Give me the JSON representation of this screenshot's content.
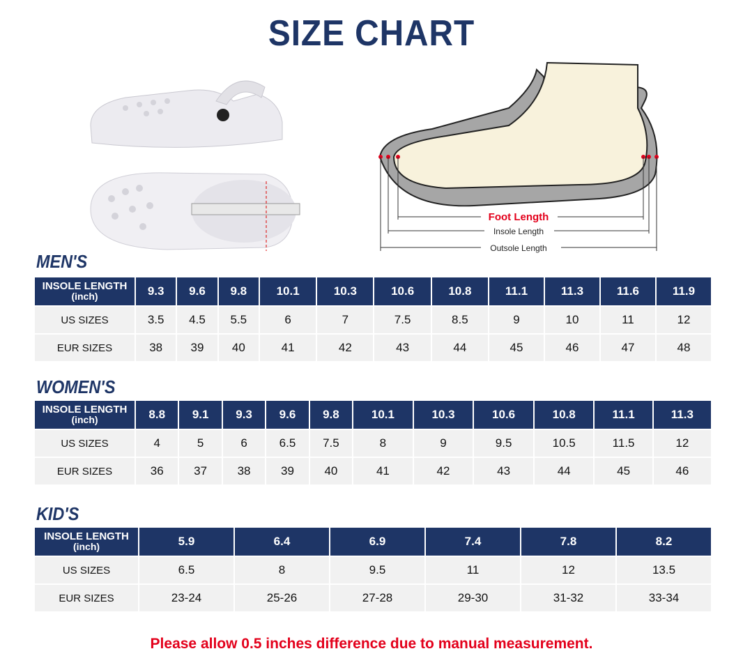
{
  "title": "SIZE CHART",
  "diagram": {
    "foot_length": "Foot Length",
    "insole_length": "Insole Length",
    "outsole_length": "Outsole Length"
  },
  "row_labels": {
    "insole": "INSOLE LENGTH",
    "unit": "(inch)",
    "us": "US SIZES",
    "eur": "EUR SIZES"
  },
  "men": {
    "title": "MEN'S",
    "insole": [
      "9.3",
      "9.6",
      "9.8",
      "10.1",
      "10.3",
      "10.6",
      "10.8",
      "11.1",
      "11.3",
      "11.6",
      "11.9"
    ],
    "us": [
      "3.5",
      "4.5",
      "5.5",
      "6",
      "7",
      "7.5",
      "8.5",
      "9",
      "10",
      "11",
      "12"
    ],
    "eur": [
      "38",
      "39",
      "40",
      "41",
      "42",
      "43",
      "44",
      "45",
      "46",
      "47",
      "48"
    ]
  },
  "women": {
    "title": "WOMEN'S",
    "insole": [
      "8.8",
      "9.1",
      "9.3",
      "9.6",
      "9.8",
      "10.1",
      "10.3",
      "10.6",
      "10.8",
      "11.1",
      "11.3"
    ],
    "us": [
      "4",
      "5",
      "6",
      "6.5",
      "7.5",
      "8",
      "9",
      "9.5",
      "10.5",
      "11.5",
      "12"
    ],
    "eur": [
      "36",
      "37",
      "38",
      "39",
      "40",
      "41",
      "42",
      "43",
      "44",
      "45",
      "46"
    ]
  },
  "kids": {
    "title": "KID'S",
    "insole": [
      "5.9",
      "6.4",
      "6.9",
      "7.4",
      "7.8",
      "8.2"
    ],
    "us": [
      "6.5",
      "8",
      "9.5",
      "11",
      "12",
      "13.5"
    ],
    "eur": [
      "23-24",
      "25-26",
      "27-28",
      "29-30",
      "31-32",
      "33-34"
    ]
  },
  "note": "Please allow 0.5 inches difference due to manual measurement.",
  "colors": {
    "navy": "#1e3566",
    "red": "#e3001b",
    "cell": "#f1f1f1"
  }
}
